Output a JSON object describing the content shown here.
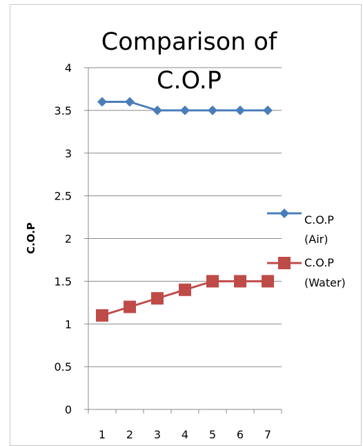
{
  "chart_data": {
    "type": "line",
    "title_lines": [
      "Comparison of",
      "C.O.P"
    ],
    "xlabel": "",
    "ylabel": "C.O.P",
    "categories": [
      "1",
      "2",
      "3",
      "4",
      "5",
      "6",
      "7"
    ],
    "ylim": [
      0,
      4
    ],
    "yticks": [
      "0",
      "0.5",
      "1",
      "1.5",
      "2",
      "2.5",
      "3",
      "3.5",
      "4"
    ],
    "grid": true,
    "legend_position": "right",
    "series": [
      {
        "name_lines": [
          "C.O.P",
          "(Air)"
        ],
        "marker": "diamond",
        "color": "#4a7ebb",
        "values": [
          3.6,
          3.6,
          3.5,
          3.5,
          3.5,
          3.5,
          3.5
        ]
      },
      {
        "name_lines": [
          "C.O.P",
          "(Water)"
        ],
        "marker": "square",
        "color": "#be4b48",
        "values": [
          1.1,
          1.2,
          1.3,
          1.4,
          1.5,
          1.5,
          1.5
        ]
      }
    ]
  }
}
